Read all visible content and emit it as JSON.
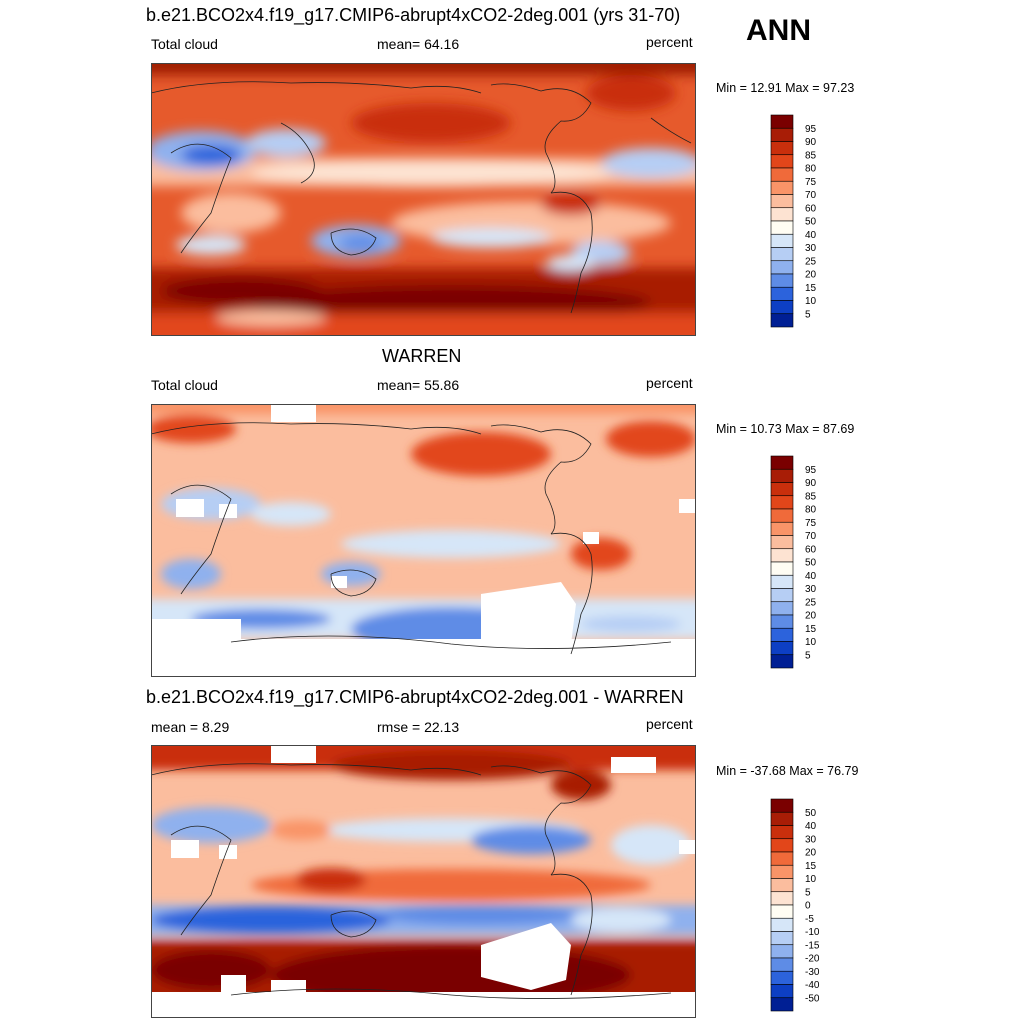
{
  "season": "ANN",
  "colorbar_abs": {
    "labels": [
      "95",
      "90",
      "85",
      "80",
      "75",
      "70",
      "60",
      "50",
      "40",
      "30",
      "25",
      "20",
      "15",
      "10",
      "5"
    ],
    "colors": [
      "#7a0000",
      "#a81d06",
      "#c92f0c",
      "#e2461a",
      "#f06a3a",
      "#f99468",
      "#fbbd9e",
      "#fde3d2",
      "#fffdf3",
      "#d6e6f8",
      "#b6cef4",
      "#8fb1ee",
      "#5e8ce6",
      "#2c63dc",
      "#0d3fc4",
      "#001f94"
    ]
  },
  "colorbar_diff": {
    "labels": [
      "50",
      "40",
      "30",
      "20",
      "15",
      "10",
      "5",
      "0",
      "-5",
      "-10",
      "-15",
      "-20",
      "-30",
      "-40",
      "-50"
    ],
    "colors": [
      "#7a0000",
      "#a81d06",
      "#c92f0c",
      "#e2461a",
      "#f06a3a",
      "#f99468",
      "#fbbd9e",
      "#fde3d2",
      "#fffdf3",
      "#d6e6f8",
      "#b6cef4",
      "#8fb1ee",
      "#5e8ce6",
      "#2c63dc",
      "#0d3fc4",
      "#001f94"
    ]
  },
  "panels": [
    {
      "title": "b.e21.BCO2x4.f19_g17.CMIP6-abrupt4xCO2-2deg.001 (yrs 31-70)",
      "left_label": "Total cloud",
      "center_label": "mean=  64.16",
      "right_label": "percent",
      "minmax": "Min =  12.91 Max =  97.23"
    },
    {
      "title": "WARREN",
      "left_label": "Total cloud",
      "center_label": "mean=  55.86",
      "right_label": "percent",
      "minmax": "Min =  10.73 Max =  87.69"
    },
    {
      "title": "b.e21.BCO2x4.f19_g17.CMIP6-abrupt4xCO2-2deg.001 - WARREN",
      "left_label": "mean =   8.29",
      "center_label": "rmse =  22.13",
      "right_label": "percent",
      "minmax": "Min = -37.68 Max =  76.79"
    }
  ]
}
